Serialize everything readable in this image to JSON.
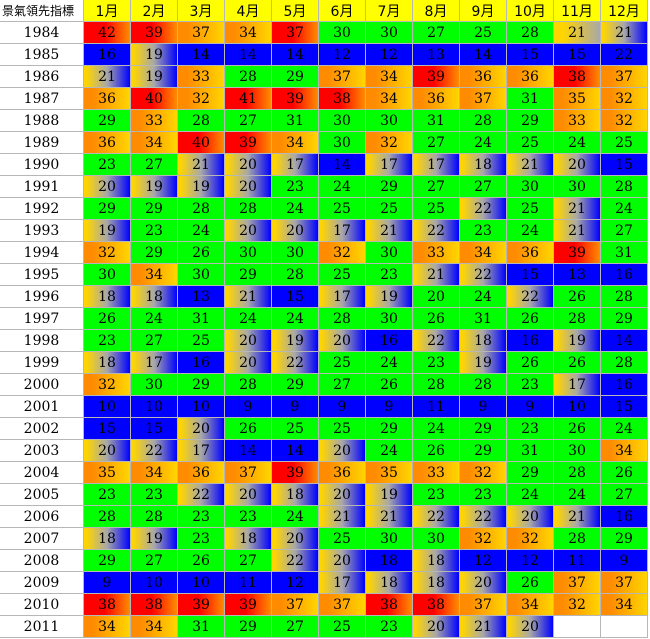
{
  "header": {
    "title": "景氣領先指標",
    "months": [
      "1月",
      "2月",
      "3月",
      "4月",
      "5月",
      "6月",
      "7月",
      "8月",
      "9月",
      "10月",
      "11月",
      "12月"
    ]
  },
  "palette": {
    "green": "#00ff00",
    "blue": "#0000ff",
    "red": "#ff0000",
    "orange": "#ff8c00",
    "yellow": "#ffd500",
    "gray": "#a8a8a8"
  },
  "rows": [
    {
      "year": "1984",
      "values": [
        42,
        39,
        37,
        34,
        37,
        30,
        30,
        27,
        25,
        28,
        21,
        21
      ],
      "fills": [
        "RO",
        "RO",
        "OY",
        "OY",
        "RO",
        "G",
        "G",
        "G",
        "G",
        "G",
        "YG",
        "YB"
      ]
    },
    {
      "year": "1985",
      "values": [
        16,
        19,
        14,
        14,
        14,
        12,
        12,
        13,
        14,
        15,
        15,
        22
      ],
      "fills": [
        "B",
        "YB",
        "B",
        "B",
        "B",
        "B",
        "B",
        "B",
        "B",
        "B",
        "B",
        "B"
      ]
    },
    {
      "year": "1986",
      "values": [
        21,
        19,
        33,
        28,
        29,
        37,
        34,
        39,
        36,
        36,
        38,
        37
      ],
      "fills": [
        "YB",
        "YB",
        "OY",
        "G",
        "G",
        "OY",
        "OY",
        "RO",
        "OY",
        "OY",
        "RO",
        "OY"
      ]
    },
    {
      "year": "1987",
      "values": [
        36,
        40,
        32,
        41,
        39,
        38,
        34,
        36,
        37,
        31,
        35,
        32
      ],
      "fills": [
        "OY",
        "RO",
        "OY",
        "RO",
        "RO",
        "RO",
        "OY",
        "OY",
        "OY",
        "G",
        "OY",
        "OY"
      ]
    },
    {
      "year": "1988",
      "values": [
        29,
        33,
        28,
        27,
        31,
        30,
        30,
        31,
        28,
        29,
        33,
        32
      ],
      "fills": [
        "G",
        "OY",
        "G",
        "G",
        "G",
        "G",
        "G",
        "G",
        "G",
        "G",
        "OY",
        "OY"
      ]
    },
    {
      "year": "1989",
      "values": [
        36,
        34,
        40,
        39,
        34,
        30,
        32,
        27,
        24,
        25,
        24,
        25
      ],
      "fills": [
        "OY",
        "OY",
        "RO",
        "RO",
        "OY",
        "G",
        "OY",
        "G",
        "G",
        "G",
        "G",
        "G"
      ]
    },
    {
      "year": "1990",
      "values": [
        23,
        27,
        21,
        20,
        17,
        14,
        17,
        17,
        18,
        21,
        20,
        15
      ],
      "fills": [
        "G",
        "G",
        "YB",
        "YB",
        "YB",
        "B",
        "YB",
        "YB",
        "YB",
        "YB",
        "YB",
        "B"
      ]
    },
    {
      "year": "1991",
      "values": [
        20,
        19,
        19,
        20,
        23,
        24,
        29,
        27,
        27,
        30,
        30,
        28
      ],
      "fills": [
        "YB",
        "YB",
        "YB",
        "YB",
        "G",
        "G",
        "G",
        "G",
        "G",
        "G",
        "G",
        "G"
      ]
    },
    {
      "year": "1992",
      "values": [
        29,
        29,
        28,
        28,
        24,
        25,
        25,
        25,
        22,
        25,
        21,
        24
      ],
      "fills": [
        "G",
        "G",
        "G",
        "G",
        "G",
        "G",
        "G",
        "G",
        "YB",
        "G",
        "YB",
        "G"
      ]
    },
    {
      "year": "1993",
      "values": [
        19,
        23,
        24,
        20,
        20,
        17,
        21,
        22,
        23,
        24,
        21,
        27
      ],
      "fills": [
        "YB",
        "G",
        "G",
        "YB",
        "YB",
        "YB",
        "YB",
        "YB",
        "G",
        "G",
        "YB",
        "G"
      ]
    },
    {
      "year": "1994",
      "values": [
        32,
        29,
        26,
        30,
        30,
        32,
        30,
        33,
        34,
        36,
        39,
        31
      ],
      "fills": [
        "OY",
        "G",
        "G",
        "G",
        "G",
        "OY",
        "G",
        "OY",
        "OY",
        "OY",
        "RO",
        "G"
      ]
    },
    {
      "year": "1995",
      "values": [
        30,
        34,
        30,
        29,
        28,
        25,
        23,
        21,
        22,
        15,
        13,
        16
      ],
      "fills": [
        "G",
        "OY",
        "G",
        "G",
        "G",
        "G",
        "G",
        "YB",
        "YB",
        "B",
        "B",
        "B"
      ]
    },
    {
      "year": "1996",
      "values": [
        18,
        18,
        13,
        21,
        15,
        17,
        19,
        20,
        24,
        22,
        26,
        28
      ],
      "fills": [
        "YB",
        "YB",
        "B",
        "YB",
        "B",
        "YB",
        "YB",
        "G",
        "G",
        "YB",
        "G",
        "G"
      ]
    },
    {
      "year": "1997",
      "values": [
        26,
        24,
        31,
        24,
        24,
        28,
        30,
        26,
        31,
        26,
        28,
        29
      ],
      "fills": [
        "G",
        "G",
        "G",
        "G",
        "G",
        "G",
        "G",
        "G",
        "G",
        "G",
        "G",
        "G"
      ]
    },
    {
      "year": "1998",
      "values": [
        23,
        27,
        25,
        20,
        19,
        20,
        16,
        22,
        18,
        16,
        19,
        14
      ],
      "fills": [
        "G",
        "G",
        "G",
        "YB",
        "YB",
        "YB",
        "B",
        "YB",
        "YB",
        "B",
        "YB",
        "B"
      ]
    },
    {
      "year": "1999",
      "values": [
        18,
        17,
        16,
        20,
        22,
        25,
        24,
        23,
        19,
        26,
        26,
        28
      ],
      "fills": [
        "YB",
        "YB",
        "B",
        "YB",
        "YB",
        "G",
        "G",
        "G",
        "YB",
        "G",
        "G",
        "G"
      ]
    },
    {
      "year": "2000",
      "values": [
        32,
        30,
        29,
        28,
        29,
        27,
        26,
        28,
        28,
        23,
        17,
        16
      ],
      "fills": [
        "OY",
        "G",
        "G",
        "G",
        "G",
        "G",
        "G",
        "G",
        "G",
        "G",
        "YB",
        "B"
      ]
    },
    {
      "year": "2001",
      "values": [
        10,
        10,
        10,
        9,
        9,
        9,
        9,
        11,
        9,
        9,
        10,
        15
      ],
      "fills": [
        "B",
        "B",
        "B",
        "B",
        "B",
        "B",
        "B",
        "B",
        "B",
        "B",
        "B",
        "B"
      ]
    },
    {
      "year": "2002",
      "values": [
        15,
        15,
        20,
        26,
        25,
        25,
        29,
        24,
        29,
        23,
        26,
        24
      ],
      "fills": [
        "B",
        "B",
        "YB",
        "G",
        "G",
        "G",
        "G",
        "G",
        "G",
        "G",
        "G",
        "G"
      ]
    },
    {
      "year": "2003",
      "values": [
        20,
        22,
        17,
        14,
        14,
        20,
        24,
        26,
        29,
        31,
        30,
        34
      ],
      "fills": [
        "YB",
        "YB",
        "YB",
        "B",
        "B",
        "YB",
        "G",
        "G",
        "G",
        "G",
        "G",
        "OY"
      ]
    },
    {
      "year": "2004",
      "values": [
        35,
        34,
        36,
        37,
        39,
        36,
        35,
        33,
        32,
        29,
        28,
        26
      ],
      "fills": [
        "OY",
        "OY",
        "OY",
        "OY",
        "RO",
        "OY",
        "OY",
        "OY",
        "OY",
        "G",
        "G",
        "G"
      ]
    },
    {
      "year": "2005",
      "values": [
        23,
        23,
        22,
        20,
        18,
        20,
        19,
        23,
        23,
        24,
        24,
        27
      ],
      "fills": [
        "G",
        "G",
        "YB",
        "YB",
        "YB",
        "YB",
        "YB",
        "G",
        "G",
        "G",
        "G",
        "G"
      ]
    },
    {
      "year": "2006",
      "values": [
        28,
        28,
        23,
        23,
        24,
        21,
        21,
        22,
        22,
        20,
        21,
        16
      ],
      "fills": [
        "G",
        "G",
        "G",
        "G",
        "G",
        "YB",
        "YB",
        "YB",
        "YB",
        "YB",
        "YB",
        "B"
      ]
    },
    {
      "year": "2007",
      "values": [
        18,
        19,
        23,
        18,
        20,
        25,
        30,
        30,
        32,
        32,
        28,
        29
      ],
      "fills": [
        "YB",
        "YB",
        "G",
        "YB",
        "YB",
        "G",
        "G",
        "G",
        "OY",
        "OY",
        "G",
        "G"
      ]
    },
    {
      "year": "2008",
      "values": [
        29,
        27,
        26,
        27,
        22,
        20,
        18,
        18,
        12,
        12,
        11,
        9
      ],
      "fills": [
        "G",
        "G",
        "G",
        "G",
        "YB",
        "YB",
        "B",
        "YB",
        "B",
        "B",
        "B",
        "B"
      ]
    },
    {
      "year": "2009",
      "values": [
        9,
        10,
        10,
        11,
        12,
        17,
        18,
        18,
        20,
        26,
        37,
        37
      ],
      "fills": [
        "B",
        "B",
        "B",
        "B",
        "B",
        "YB",
        "YB",
        "YB",
        "YB",
        "G",
        "OY",
        "OY"
      ]
    },
    {
      "year": "2010",
      "values": [
        38,
        38,
        39,
        39,
        37,
        37,
        38,
        38,
        37,
        34,
        32,
        34
      ],
      "fills": [
        "RO",
        "RO",
        "RO",
        "RO",
        "OY",
        "OY",
        "RO",
        "RO",
        "OY",
        "OY",
        "OY",
        "OY"
      ]
    },
    {
      "year": "2011",
      "values": [
        34,
        34,
        31,
        29,
        27,
        25,
        23,
        20,
        21,
        20,
        "",
        ""
      ],
      "fills": [
        "OY",
        "OY",
        "G",
        "G",
        "G",
        "G",
        "G",
        "YB",
        "YB",
        "YB",
        "",
        ""
      ]
    }
  ]
}
